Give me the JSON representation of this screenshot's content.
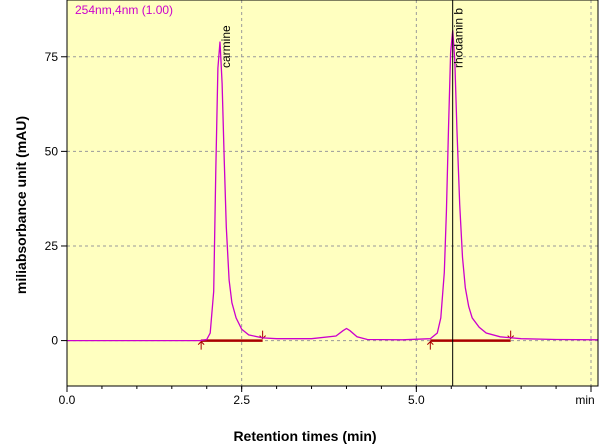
{
  "chart_data": {
    "type": "line",
    "legend": "254nm,4nm (1.00)",
    "xlabel": "Retention times (min)",
    "ylabel": "miliabsorbance unit (mAU)",
    "x_unit": "min",
    "xlim": [
      0.0,
      7.6
    ],
    "ylim": [
      -12,
      90
    ],
    "xticks": [
      "0.0",
      "2.5",
      "5.0"
    ],
    "yticks": [
      "0",
      "25",
      "50",
      "75"
    ],
    "grid": true,
    "colors": {
      "plot_bg": "#ffffc0",
      "trace": "#cc00cc",
      "baseline": "#aa0000",
      "grid": "#9a9a9a"
    },
    "series": [
      {
        "x": [
          0.0,
          1.9,
          2.0,
          2.05,
          2.1,
          2.13,
          2.16,
          2.19,
          2.22,
          2.25,
          2.28,
          2.32,
          2.36,
          2.42,
          2.5,
          2.6,
          2.8,
          3.0,
          3.5,
          3.85,
          3.95,
          4.0,
          4.05,
          4.15,
          4.3,
          4.8,
          5.2,
          5.3,
          5.35,
          5.4,
          5.43,
          5.46,
          5.49,
          5.52,
          5.55,
          5.58,
          5.62,
          5.66,
          5.7,
          5.75,
          5.8,
          5.9,
          6.0,
          6.2,
          6.5,
          7.0,
          7.6
        ],
        "y": [
          0.0,
          0.0,
          0.3,
          2.0,
          13.0,
          45.0,
          72.0,
          79.0,
          68.0,
          48.0,
          30.0,
          16.0,
          10.0,
          6.0,
          3.0,
          1.5,
          0.7,
          0.5,
          0.5,
          1.2,
          2.6,
          3.2,
          2.6,
          1.0,
          0.3,
          0.2,
          0.5,
          2.0,
          6.0,
          18.0,
          34.0,
          56.0,
          76.0,
          82.0,
          74.0,
          56.0,
          36.0,
          22.0,
          14.0,
          9.0,
          6.0,
          3.5,
          2.0,
          1.0,
          0.5,
          0.3,
          0.2
        ]
      }
    ],
    "peaks": [
      {
        "label": "carmine",
        "x": 2.19
      },
      {
        "label": "rhodamin b",
        "x": 5.52
      }
    ],
    "baseline_segments": [
      [
        1.92,
        2.8
      ],
      [
        5.2,
        6.35
      ]
    ]
  }
}
